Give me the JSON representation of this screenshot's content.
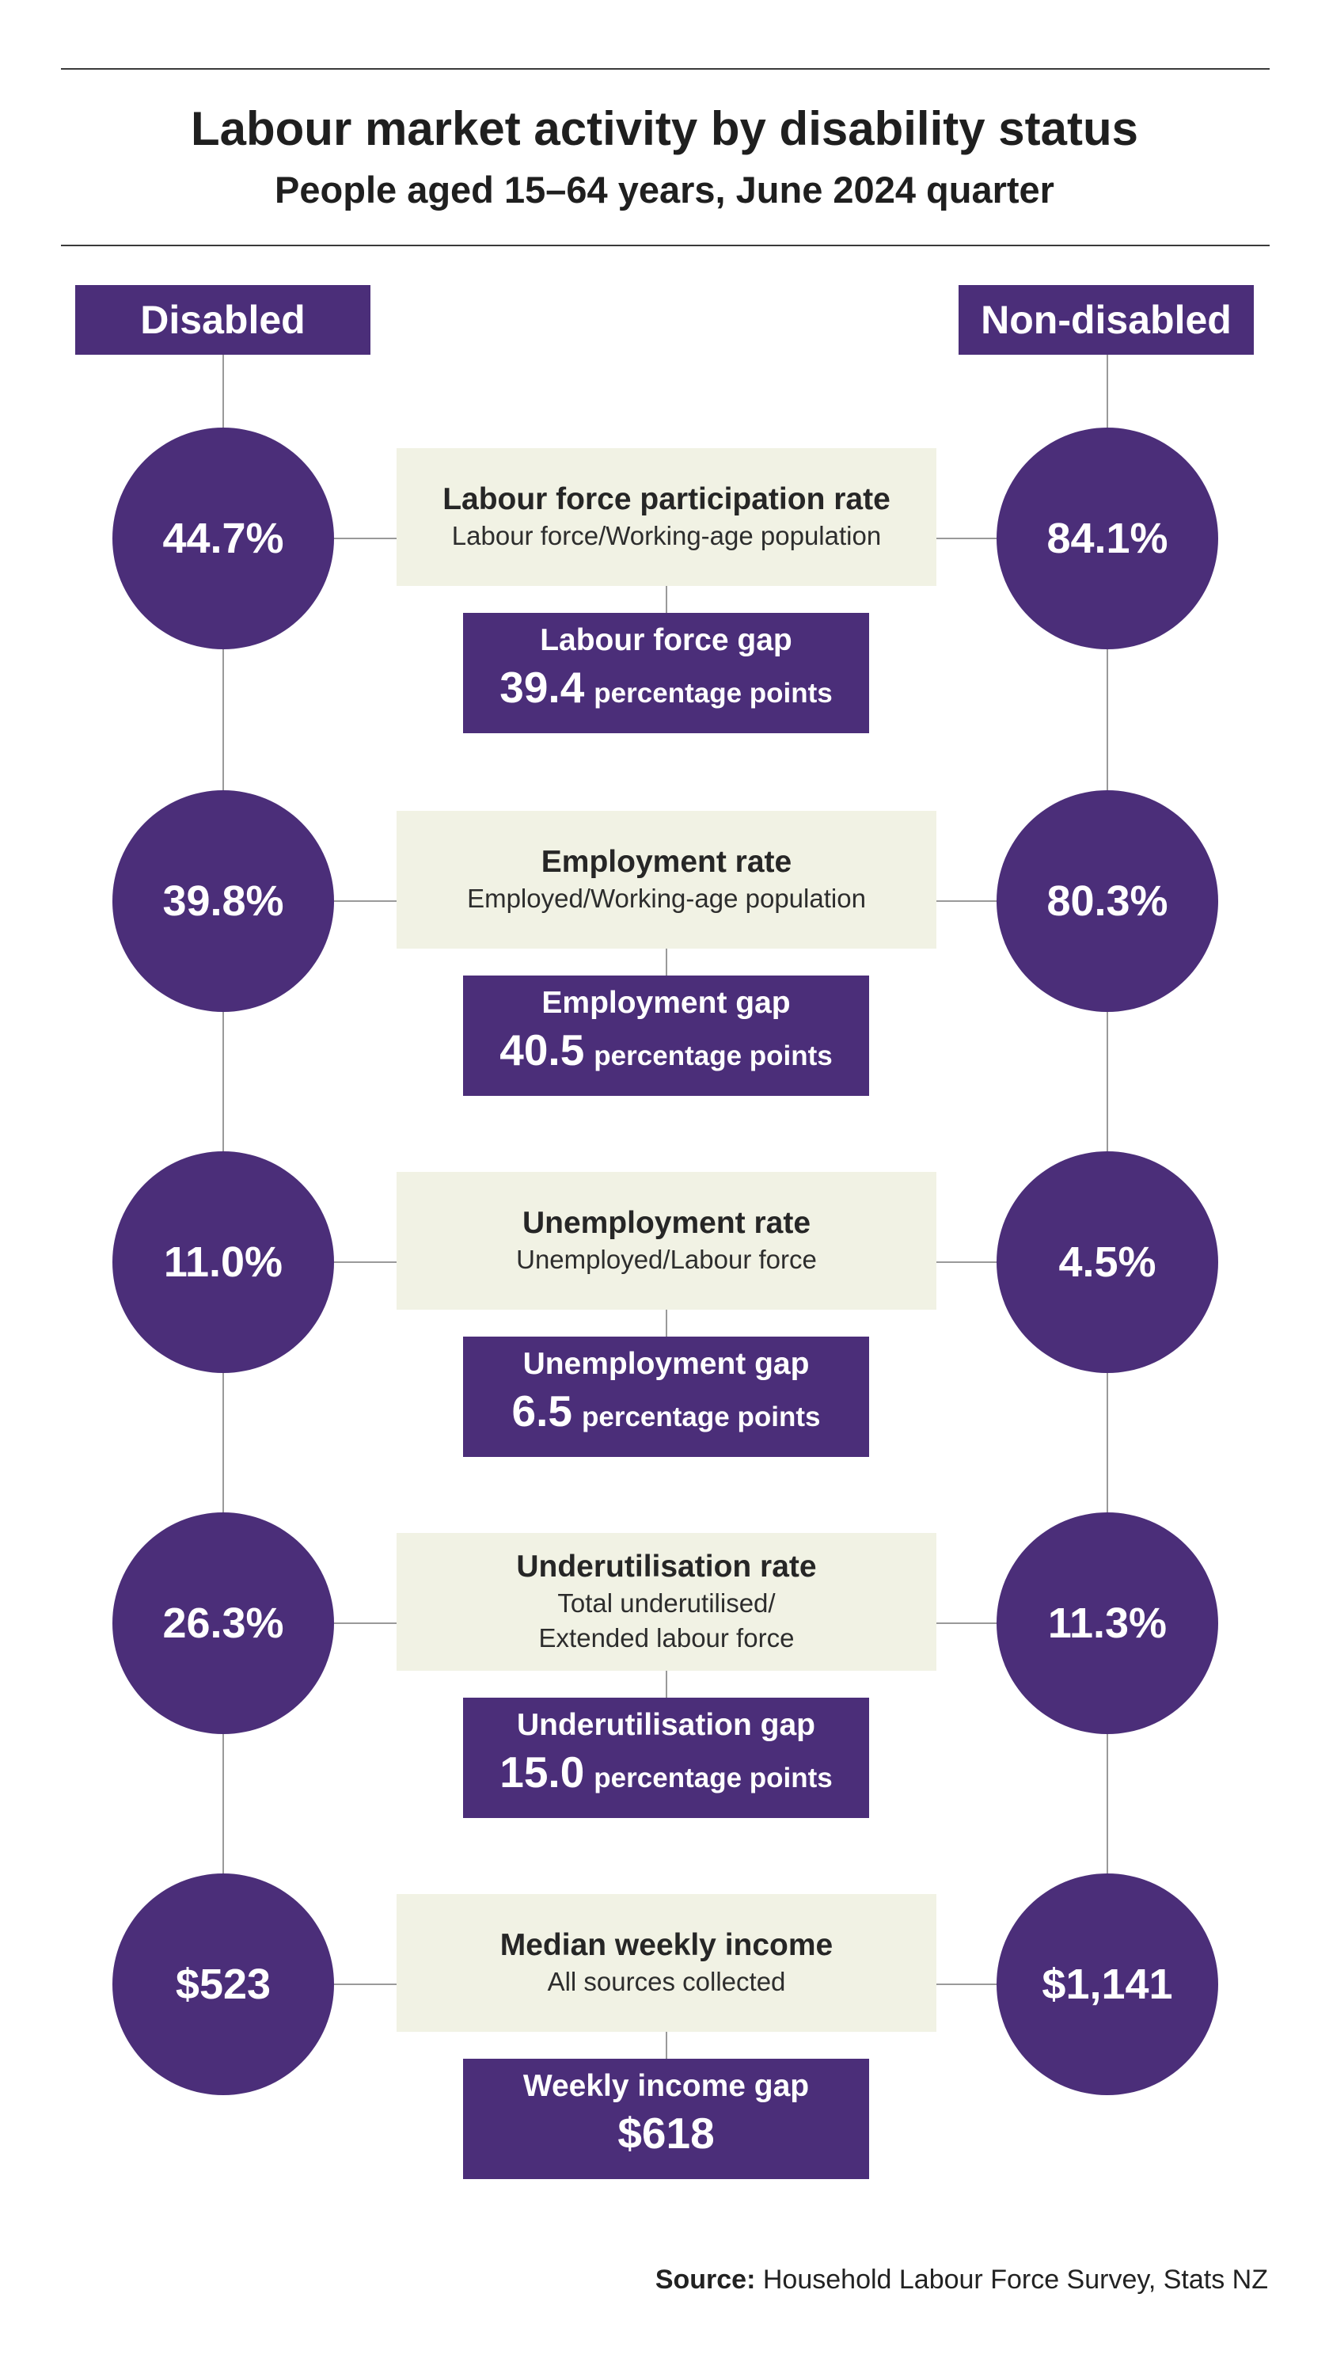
{
  "title": "Labour market activity by disability status",
  "subtitle": "People aged 15–64 years, June 2024 quarter",
  "headers": {
    "disabled": "Disabled",
    "non_disabled": "Non-disabled"
  },
  "colors": {
    "purple": "#4b2e79",
    "panel": "#f1f2e4",
    "connector": "#9a9a9a"
  },
  "rows": [
    {
      "category": "Labour force participation rate",
      "description": "Labour force/Working-age population",
      "disabled": "44.7%",
      "non_disabled": "84.1%",
      "gap_title": "Labour force gap",
      "gap_value": "39.4",
      "gap_unit": "percentage points"
    },
    {
      "category": "Employment rate",
      "description": "Employed/Working-age population",
      "disabled": "39.8%",
      "non_disabled": "80.3%",
      "gap_title": "Employment gap",
      "gap_value": "40.5",
      "gap_unit": "percentage points"
    },
    {
      "category": "Unemployment rate",
      "description": "Unemployed/Labour force",
      "disabled": "11.0%",
      "non_disabled": "4.5%",
      "gap_title": "Unemployment gap",
      "gap_value": "6.5",
      "gap_unit": "percentage points"
    },
    {
      "category": "Underutilisation rate",
      "description": "Total underutilised/",
      "description2": "Extended labour force",
      "disabled": "26.3%",
      "non_disabled": "11.3%",
      "gap_title": "Underutilisation gap",
      "gap_value": "15.0",
      "gap_unit": "percentage points"
    },
    {
      "category": "Median weekly income",
      "description": "All sources collected",
      "disabled": "$523",
      "non_disabled": "$1,141",
      "gap_title": "Weekly income gap",
      "gap_value": "$618",
      "gap_unit": ""
    }
  ],
  "source": {
    "label": "Source:",
    "text": "Household Labour Force Survey, Stats NZ"
  }
}
